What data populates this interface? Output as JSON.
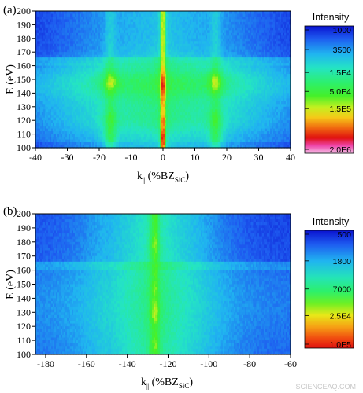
{
  "chart_data": [
    {
      "type": "heatmap",
      "panel_label": "(a)",
      "xlabel": "k",
      "xlabel_sub": "||",
      "xlabel_unit": "(%BZ",
      "xlabel_unit_sub": "SiC",
      "xlabel_close": ")",
      "ylabel": "E (eV)",
      "xlim": [
        -40,
        40
      ],
      "ylim": [
        100,
        200
      ],
      "xticks": [
        -40,
        -30,
        -20,
        -10,
        0,
        10,
        20,
        30,
        40
      ],
      "yticks": [
        100,
        110,
        120,
        130,
        140,
        150,
        160,
        170,
        180,
        190,
        200
      ],
      "colorbar": {
        "title": "Intensity",
        "scale": "log",
        "labels": [
          "1000",
          "3500",
          "1.5E4",
          "5.0E4",
          "1.5E5",
          "2.0E6"
        ],
        "values": [
          1000,
          3500,
          15000,
          50000,
          150000,
          2000000
        ]
      },
      "features": {
        "central_line_k": 0,
        "replica_lines_k": [
          -16.5,
          16.5
        ],
        "intensity_maxima_eV": [
          107,
          120,
          145,
          148
        ],
        "horizontal_edges_eV": [
          135,
          160,
          166
        ]
      }
    },
    {
      "type": "heatmap",
      "panel_label": "(b)",
      "xlabel": "k",
      "xlabel_sub": "||",
      "xlabel_unit": "(%BZ",
      "xlabel_unit_sub": "SiC",
      "xlabel_close": ")",
      "ylabel": "E (eV)",
      "xlim": [
        -185,
        -60
      ],
      "ylim": [
        100,
        200
      ],
      "xticks": [
        -180,
        -160,
        -140,
        -120,
        -100,
        -80,
        -60
      ],
      "yticks": [
        100,
        110,
        120,
        130,
        140,
        150,
        160,
        170,
        180,
        190,
        200
      ],
      "colorbar": {
        "title": "Intensity",
        "scale": "log",
        "labels": [
          "500",
          "1800",
          "7000",
          "2.5E4",
          "1.0E5"
        ],
        "values": [
          500,
          1800,
          7000,
          25000,
          100000
        ]
      },
      "features": {
        "central_line_k": -126.5,
        "intensity_maxima_eV": [
          105,
          130,
          145,
          178
        ],
        "horizontal_edges_eV": [
          160,
          166
        ]
      }
    }
  ],
  "watermark": "SCIENCEAQ.COM"
}
